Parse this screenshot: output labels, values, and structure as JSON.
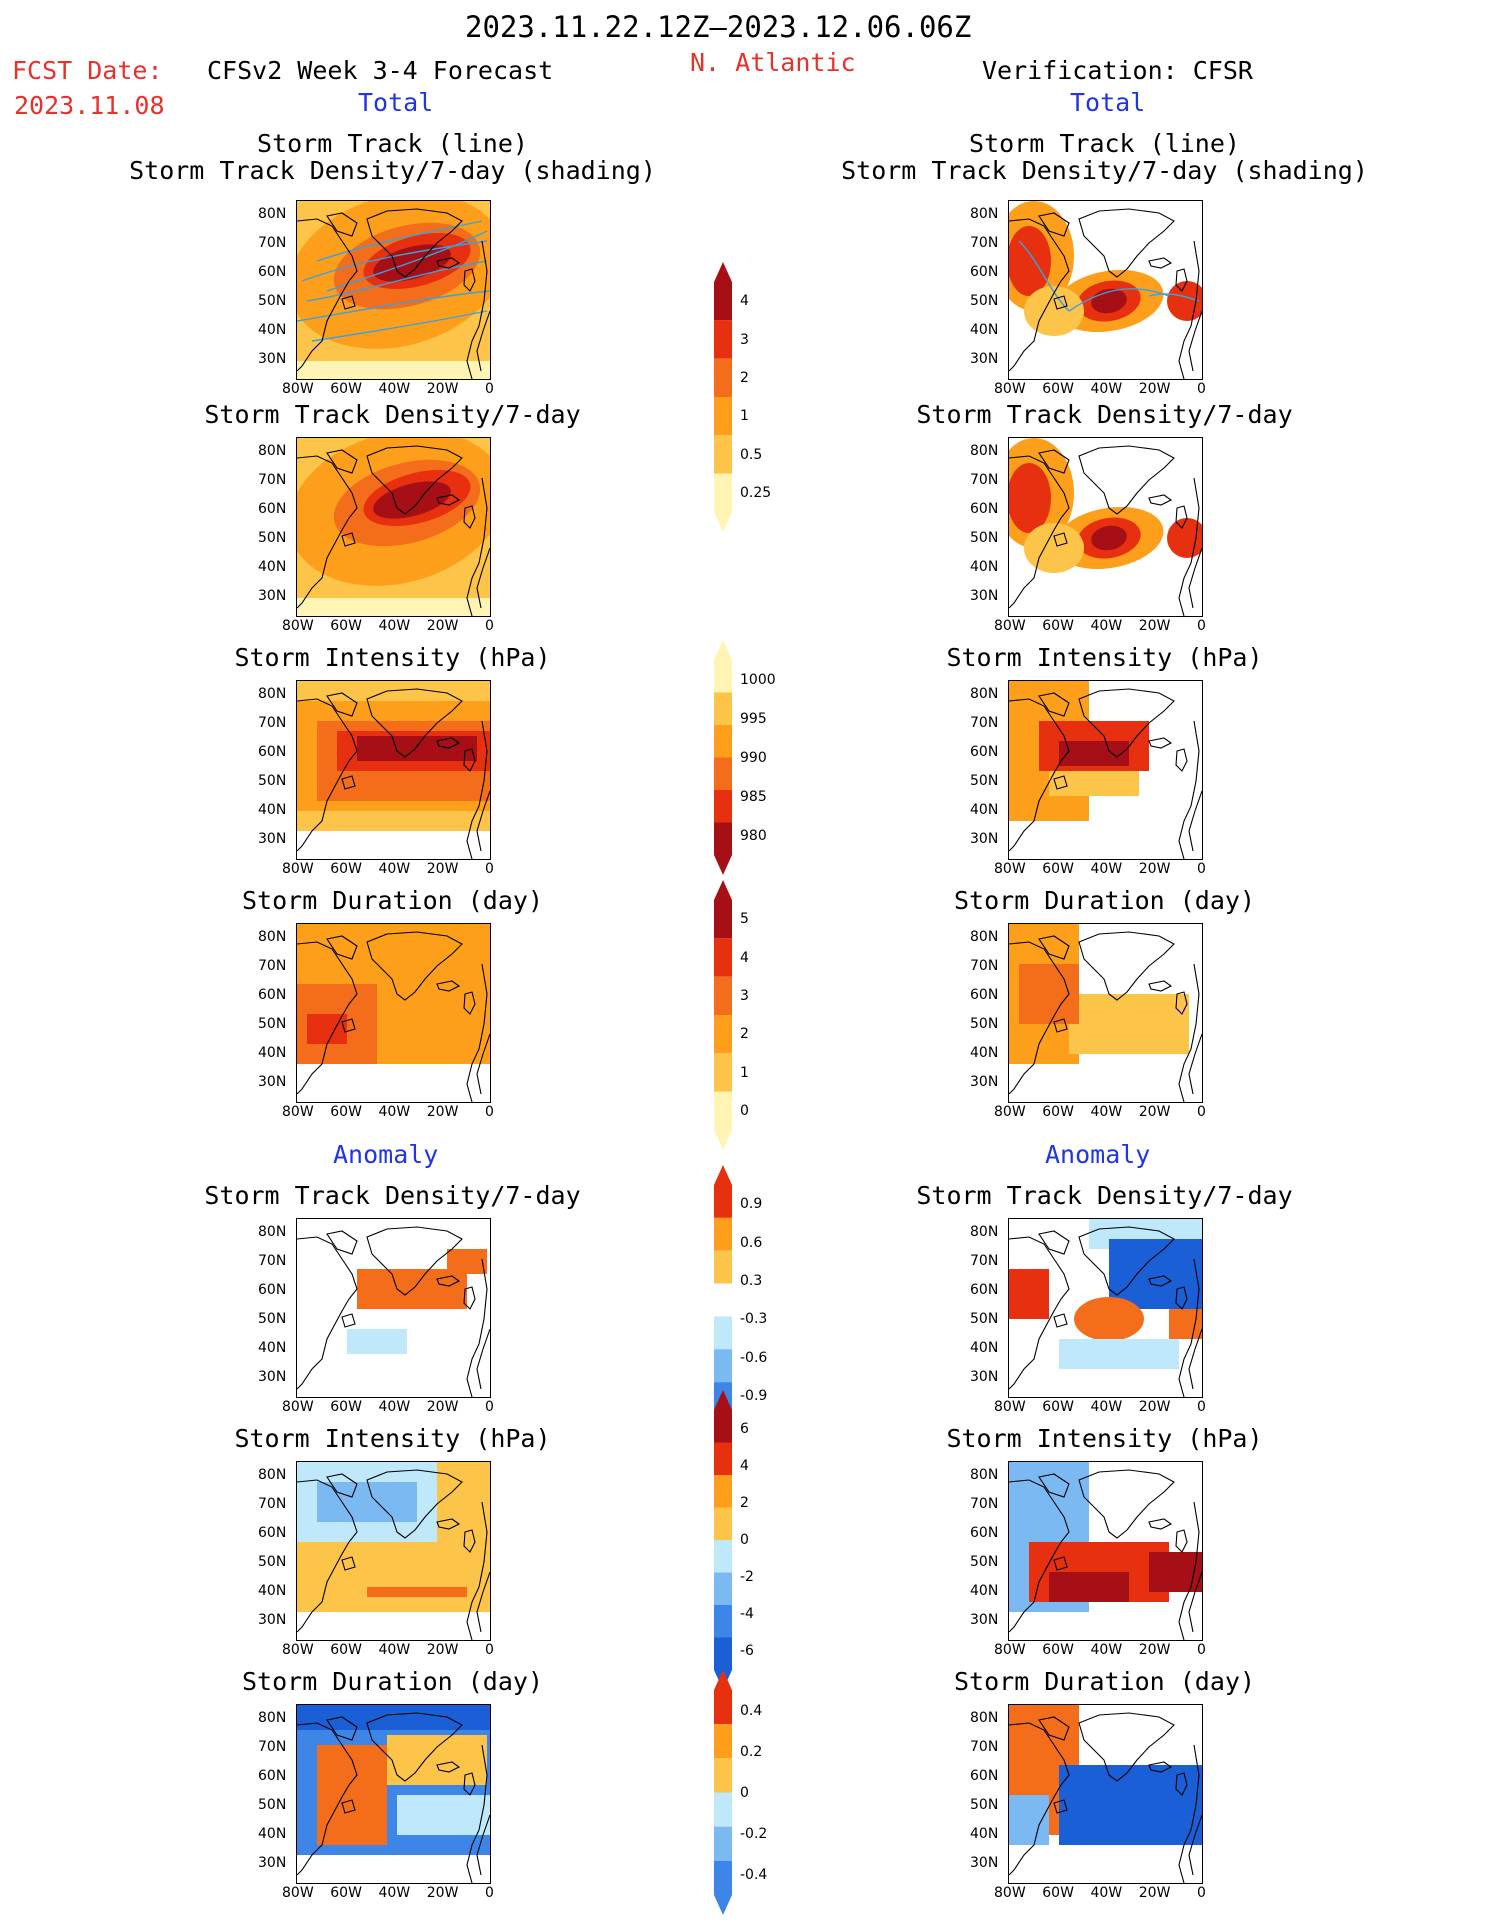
{
  "header": {
    "period": "2023.11.22.12Z–2023.12.06.06Z",
    "fcst_label": "FCST Date:",
    "fcst_date": "2023.11.08",
    "left_model": "CFSv2 Week 3-4 Forecast",
    "region": "N. Atlantic",
    "right_model": "Verification: CFSR"
  },
  "sections": {
    "total": "Total",
    "anomaly": "Anomaly"
  },
  "panel_titles": {
    "track": "Storm Track (line)\nStorm Track Density/7-day (shading)",
    "density": "Storm Track Density/7-day",
    "intensity": "Storm Intensity (hPa)",
    "duration": "Storm Duration (day)"
  },
  "axes": {
    "lat_ticks": [
      "80N",
      "70N",
      "60N",
      "50N",
      "40N",
      "30N"
    ],
    "lon_ticks": [
      "80W",
      "60W",
      "40W",
      "20W",
      "0"
    ]
  },
  "colorbars": [
    {
      "id": "cb-density",
      "labels": [
        "4",
        "3",
        "2",
        "1",
        "0.5",
        "0.25"
      ]
    },
    {
      "id": "cb-intensity",
      "labels": [
        "1000",
        "995",
        "990",
        "985",
        "980"
      ]
    },
    {
      "id": "cb-duration",
      "labels": [
        "5",
        "4",
        "3",
        "2",
        "1",
        "0"
      ]
    },
    {
      "id": "cb-density-anom",
      "labels": [
        "0.9",
        "0.6",
        "0.3",
        "-0.3",
        "-0.6",
        "-0.9"
      ]
    },
    {
      "id": "cb-intensity-anom",
      "labels": [
        "6",
        "4",
        "2",
        "0",
        "-2",
        "-4",
        "-6"
      ]
    },
    {
      "id": "cb-duration-anom",
      "labels": [
        "0.4",
        "0.2",
        "0",
        "-0.2",
        "-0.4"
      ]
    }
  ],
  "colors": {
    "dark_red": "#a50f15",
    "red": "#e6300f",
    "orange_red": "#f46d1b",
    "orange": "#fd9f1b",
    "light_orange": "#fdc44a",
    "pale_yellow": "#fff4b3",
    "light_blue": "#bfe8fb",
    "mid_blue": "#7ab9f2",
    "blue": "#3d86e8",
    "dark_blue": "#1a5fd6",
    "track_line": "#3aa0e0"
  }
}
